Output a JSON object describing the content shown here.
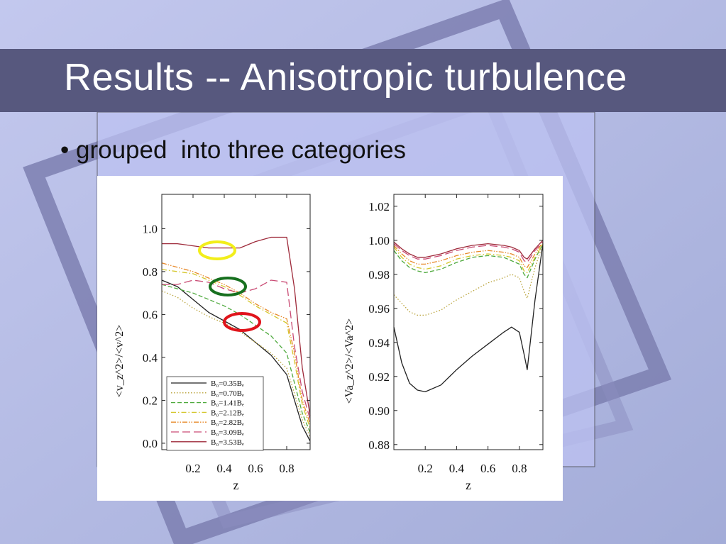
{
  "slide": {
    "title": "Results -- Anisotropic turbulence",
    "bullet_marker": "•",
    "bullet_text": "grouped  into three categories",
    "colors": {
      "background": "#b9c0e6",
      "title_bar": "#57587e",
      "frame_stroke": "#7c7fb0",
      "ellipse_yellow": "#f2ee1a",
      "ellipse_green": "#17701f",
      "ellipse_red": "#e0141b"
    }
  },
  "chart_data": [
    {
      "type": "line",
      "xlabel": "z",
      "ylabel": "<v_z^2>/<v^2>",
      "xlim": [
        0.0,
        0.95
      ],
      "ylim": [
        -0.03,
        1.16
      ],
      "xticks": [
        "0.2",
        "0.4",
        "0.6",
        "0.8"
      ],
      "yticks": [
        "0.0",
        "0.2",
        "0.4",
        "0.6",
        "0.8",
        "1.0"
      ],
      "legend_position": "bottom-left",
      "x": [
        0.0,
        0.1,
        0.2,
        0.3,
        0.4,
        0.5,
        0.6,
        0.7,
        0.8,
        0.85,
        0.9,
        0.95
      ],
      "series": [
        {
          "name": "B₀=0.35Bₑ",
          "color": "#222222",
          "dash": "solid",
          "values": [
            0.76,
            0.73,
            0.67,
            0.61,
            0.57,
            0.53,
            0.47,
            0.41,
            0.32,
            0.2,
            0.08,
            0.01
          ]
        },
        {
          "name": "B₀=0.70Bₑ",
          "color": "#b9a33a",
          "dash": "dotted",
          "values": [
            0.71,
            0.68,
            0.63,
            0.59,
            0.56,
            0.52,
            0.47,
            0.42,
            0.35,
            0.23,
            0.11,
            0.03
          ]
        },
        {
          "name": "B₀=1.41Bₑ",
          "color": "#4faa3e",
          "dash": "dashed",
          "values": [
            0.74,
            0.72,
            0.7,
            0.67,
            0.64,
            0.6,
            0.55,
            0.5,
            0.42,
            0.28,
            0.14,
            0.05
          ]
        },
        {
          "name": "B₀=2.12Bₑ",
          "color": "#d4c62a",
          "dash": "dashdot",
          "values": [
            0.81,
            0.8,
            0.79,
            0.76,
            0.73,
            0.69,
            0.64,
            0.6,
            0.56,
            0.38,
            0.18,
            0.07
          ]
        },
        {
          "name": "B₀=2.82Bₑ",
          "color": "#e8892a",
          "dash": "dashdotdot",
          "values": [
            0.84,
            0.82,
            0.8,
            0.77,
            0.74,
            0.7,
            0.65,
            0.61,
            0.58,
            0.42,
            0.2,
            0.09
          ]
        },
        {
          "name": "B₀=3.09Bₑ",
          "color": "#c94a73",
          "dash": "longdash",
          "values": [
            0.74,
            0.74,
            0.76,
            0.75,
            0.72,
            0.7,
            0.72,
            0.76,
            0.75,
            0.45,
            0.24,
            0.11
          ]
        },
        {
          "name": "B₀=3.53Bₑ",
          "color": "#9e2a3a",
          "dash": "solid",
          "values": [
            0.93,
            0.93,
            0.92,
            0.91,
            0.91,
            0.91,
            0.94,
            0.96,
            0.96,
            0.72,
            0.35,
            0.13
          ]
        }
      ]
    },
    {
      "type": "line",
      "xlabel": "z",
      "ylabel": "<Va_z^2>/<Va^2>",
      "xlim": [
        0.0,
        0.95
      ],
      "ylim": [
        0.877,
        1.027
      ],
      "xticks": [
        "0.2",
        "0.4",
        "0.6",
        "0.8"
      ],
      "yticks": [
        "0.88",
        "0.90",
        "0.92",
        "0.94",
        "0.96",
        "0.98",
        "1.00",
        "1.02"
      ],
      "x": [
        0.0,
        0.05,
        0.1,
        0.15,
        0.2,
        0.3,
        0.4,
        0.5,
        0.6,
        0.7,
        0.75,
        0.8,
        0.83,
        0.85,
        0.9,
        0.95
      ],
      "series": [
        {
          "name": "B₀=0.35Bₑ",
          "color": "#222222",
          "dash": "solid",
          "values": [
            0.949,
            0.928,
            0.916,
            0.912,
            0.911,
            0.915,
            0.924,
            0.932,
            0.939,
            0.946,
            0.949,
            0.946,
            0.933,
            0.924,
            0.965,
            0.998
          ]
        },
        {
          "name": "B₀=0.70Bₑ",
          "color": "#b9a33a",
          "dash": "dotted",
          "values": [
            0.968,
            0.963,
            0.958,
            0.956,
            0.956,
            0.959,
            0.965,
            0.97,
            0.975,
            0.978,
            0.98,
            0.978,
            0.97,
            0.966,
            0.984,
            0.998
          ]
        },
        {
          "name": "B₀=1.41Bₑ",
          "color": "#4faa3e",
          "dash": "dashed",
          "values": [
            0.994,
            0.988,
            0.984,
            0.982,
            0.981,
            0.983,
            0.987,
            0.99,
            0.991,
            0.99,
            0.988,
            0.986,
            0.98,
            0.978,
            0.989,
            0.998
          ]
        },
        {
          "name": "B₀=2.12Bₑ",
          "color": "#d4c62a",
          "dash": "dashdot",
          "values": [
            0.996,
            0.99,
            0.986,
            0.984,
            0.983,
            0.985,
            0.989,
            0.991,
            0.992,
            0.991,
            0.99,
            0.988,
            0.982,
            0.981,
            0.99,
            0.998
          ]
        },
        {
          "name": "B₀=2.82Bₑ",
          "color": "#e8892a",
          "dash": "dashdotdot",
          "values": [
            0.997,
            0.992,
            0.988,
            0.986,
            0.986,
            0.988,
            0.991,
            0.993,
            0.994,
            0.993,
            0.992,
            0.99,
            0.985,
            0.984,
            0.992,
            0.999
          ]
        },
        {
          "name": "B₀=3.09Bₑ",
          "color": "#c94a73",
          "dash": "longdash",
          "values": [
            0.998,
            0.994,
            0.991,
            0.989,
            0.989,
            0.991,
            0.994,
            0.996,
            0.997,
            0.996,
            0.995,
            0.993,
            0.988,
            0.987,
            0.994,
            0.999
          ]
        },
        {
          "name": "B₀=3.53Bₑ",
          "color": "#9e2a3a",
          "dash": "solid",
          "values": [
            0.999,
            0.995,
            0.992,
            0.99,
            0.99,
            0.992,
            0.995,
            0.997,
            0.998,
            0.997,
            0.996,
            0.994,
            0.99,
            0.989,
            0.995,
            1.0
          ]
        }
      ]
    }
  ]
}
